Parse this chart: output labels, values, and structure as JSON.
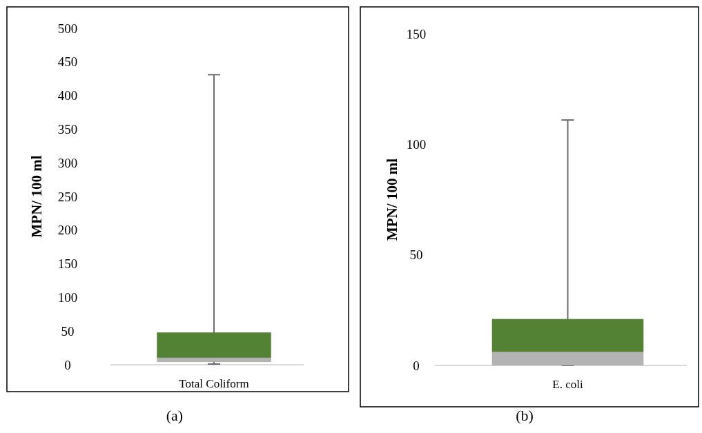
{
  "chart_data": [
    {
      "type": "box",
      "ylabel": "MPN/ 100 ml",
      "categories": [
        "Total Coliform"
      ],
      "series": [
        {
          "color": "#548235",
          "boxes": [
            {
              "low": 1,
              "q1": 4,
              "median": 10,
              "q3": 48,
              "high": 431
            }
          ]
        }
      ],
      "ylim": [
        0,
        500
      ],
      "yticks": [
        0,
        50,
        100,
        150,
        200,
        250,
        300,
        350,
        400,
        450,
        500
      ],
      "grid": false,
      "annotations": [
        "(a)"
      ]
    },
    {
      "type": "box",
      "ylabel": "MPN/ 100 ml",
      "categories": [
        "E. coli"
      ],
      "series": [
        {
          "color": "#548235",
          "boxes": [
            {
              "low": 0,
              "q1": 0,
              "median": 6,
              "q3": 21,
              "high": 111
            }
          ]
        }
      ],
      "ylim": [
        0,
        150
      ],
      "yticks": [
        0,
        50,
        100,
        150
      ],
      "grid": false,
      "annotations": [
        "(b)"
      ]
    }
  ]
}
